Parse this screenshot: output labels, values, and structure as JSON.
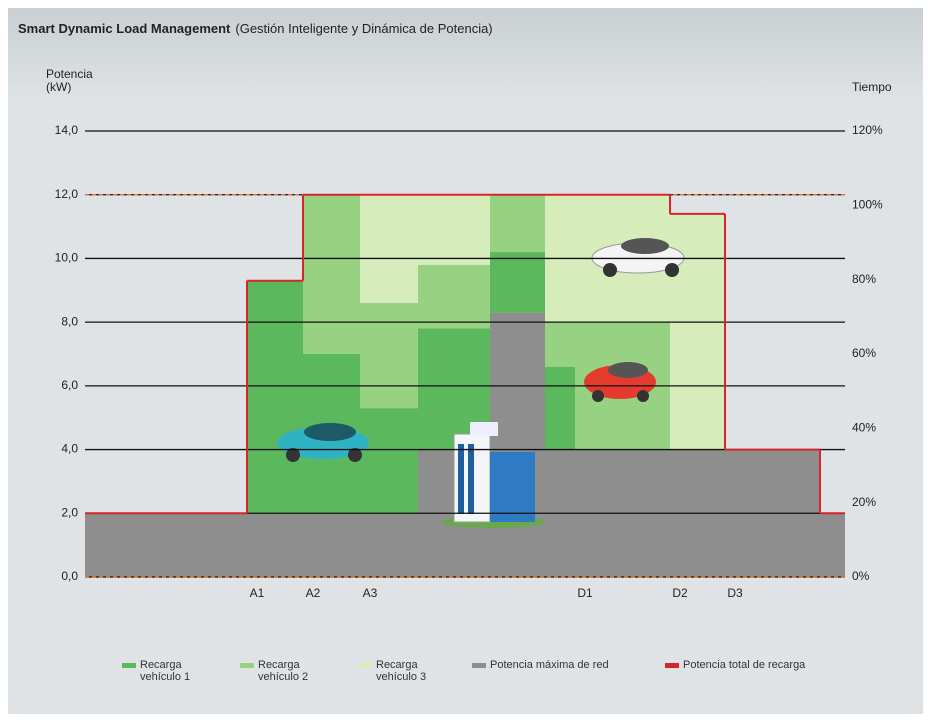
{
  "chart_data": {
    "type": "stacked-step-area",
    "title": "Smart Dynamic Load Management",
    "subtitle": "(Gestión Inteligente y Dinámica de Potencia)",
    "y_label": "Potencia (kW)",
    "y2_label": "Tiempo",
    "categories": [
      null,
      "A1",
      "A2",
      "A3",
      null,
      null,
      null,
      "D1",
      "D2",
      "D3",
      null
    ],
    "series": [
      {
        "name": "Potencia máxima de red",
        "color": "#8e8e8e",
        "type": "area",
        "values": [
          2,
          2,
          2,
          2,
          4,
          8.3,
          4,
          4,
          4,
          4,
          2
        ]
      },
      {
        "name": "Recarga vehículo 1",
        "color": "#5cb85c",
        "type": "area",
        "values": [
          0,
          7.3,
          5,
          3.3,
          3.8,
          1.9,
          2.6,
          0,
          0,
          0,
          0
        ]
      },
      {
        "name": "Recarga vehículo 2",
        "color": "#96d281",
        "type": "area",
        "values": [
          0,
          0,
          5,
          3.3,
          2,
          1.8,
          1.4,
          4,
          0,
          0,
          0
        ]
      },
      {
        "name": "Recarga vehículo 3",
        "color": "#d6ecbb",
        "type": "area",
        "values": [
          0,
          0,
          0,
          3.4,
          2.2,
          0,
          4,
          4,
          7.4,
          0,
          0
        ]
      },
      {
        "name": "Potencia total de recarga",
        "color": "#d7262b",
        "type": "line",
        "values": [
          2,
          9.3,
          12,
          12,
          12,
          12,
          12,
          12,
          11.4,
          4,
          2
        ]
      }
    ],
    "reference_lines": [
      {
        "value": 12,
        "color": "#e07b39"
      },
      {
        "value": 0,
        "color": "#e07b39"
      }
    ],
    "ylim": [
      0,
      14
    ],
    "yticks": [
      {
        "value": 0,
        "label": "0,0"
      },
      {
        "value": 2,
        "label": "2,0"
      },
      {
        "value": 4,
        "label": "4,0"
      },
      {
        "value": 6,
        "label": "6,0"
      },
      {
        "value": 8,
        "label": "8,0"
      },
      {
        "value": 10,
        "label": "10,0"
      },
      {
        "value": 12,
        "label": "12,0"
      },
      {
        "value": 14,
        "label": "14,0"
      }
    ],
    "y2lim": [
      0,
      120
    ],
    "y2ticks": [
      {
        "value": 0,
        "label": "0%"
      },
      {
        "value": 20,
        "label": "20%"
      },
      {
        "value": 40,
        "label": "40%"
      },
      {
        "value": 60,
        "label": "60%"
      },
      {
        "value": 80,
        "label": "80%"
      },
      {
        "value": 100,
        "label": "100%"
      },
      {
        "value": 120,
        "label": "120%"
      }
    ],
    "grid": true
  }
}
